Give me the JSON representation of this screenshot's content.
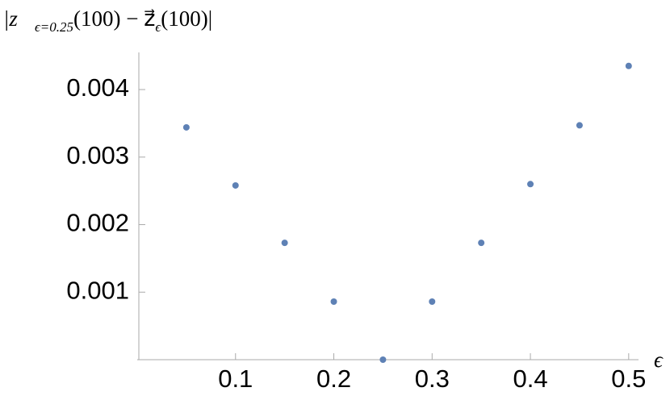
{
  "chart_data": {
    "type": "scatter",
    "y_label": [
      "|z⃗",
      "ϵ=0.25",
      "(100) − z⃗",
      "ϵ",
      "(100)|"
    ],
    "x_label": "ϵ",
    "x": [
      0.05,
      0.1,
      0.15,
      0.2,
      0.25,
      0.3,
      0.35,
      0.4,
      0.45,
      0.5
    ],
    "values": [
      0.00344,
      0.00258,
      0.00173,
      0.00086,
      0,
      0.00086,
      0.00173,
      0.0026,
      0.00347,
      0.00435
    ],
    "color": "#5e81b5",
    "xlim": [
      0,
      0.51
    ],
    "xticks": [
      0.1,
      0.2,
      0.3,
      0.4,
      0.5
    ],
    "ylim": [
      0,
      0.00455
    ],
    "yticks": [
      0.001,
      0.002,
      0.003,
      0.004
    ]
  }
}
